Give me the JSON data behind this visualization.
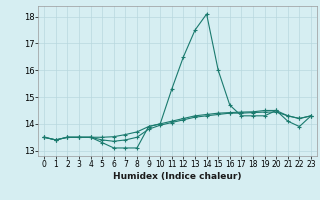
{
  "title": "",
  "xlabel": "Humidex (Indice chaleur)",
  "ylabel": "",
  "xlim": [
    -0.5,
    23.5
  ],
  "ylim": [
    12.8,
    18.4
  ],
  "yticks": [
    13,
    14,
    15,
    16,
    17,
    18
  ],
  "xticks": [
    0,
    1,
    2,
    3,
    4,
    5,
    6,
    7,
    8,
    9,
    10,
    11,
    12,
    13,
    14,
    15,
    16,
    17,
    18,
    19,
    20,
    21,
    22,
    23
  ],
  "bg_color": "#d6eef2",
  "grid_color": "#b8d8de",
  "line_color": "#1a7a6e",
  "curves": [
    [
      13.5,
      13.4,
      13.5,
      13.5,
      13.5,
      13.3,
      13.1,
      13.1,
      13.1,
      13.9,
      14.0,
      15.3,
      16.5,
      17.5,
      18.1,
      16.0,
      14.7,
      14.3,
      14.3,
      14.3,
      14.5,
      14.1,
      13.9,
      14.3
    ],
    [
      13.5,
      13.4,
      13.5,
      13.5,
      13.5,
      13.4,
      13.35,
      13.4,
      13.5,
      13.8,
      13.95,
      14.05,
      14.15,
      14.25,
      14.3,
      14.35,
      14.4,
      14.4,
      14.42,
      14.44,
      14.44,
      14.3,
      14.2,
      14.3
    ],
    [
      13.5,
      13.4,
      13.5,
      13.5,
      13.5,
      13.5,
      13.52,
      13.6,
      13.7,
      13.9,
      14.0,
      14.1,
      14.2,
      14.3,
      14.35,
      14.4,
      14.42,
      14.44,
      14.45,
      14.5,
      14.5,
      14.3,
      14.2,
      14.3
    ]
  ]
}
